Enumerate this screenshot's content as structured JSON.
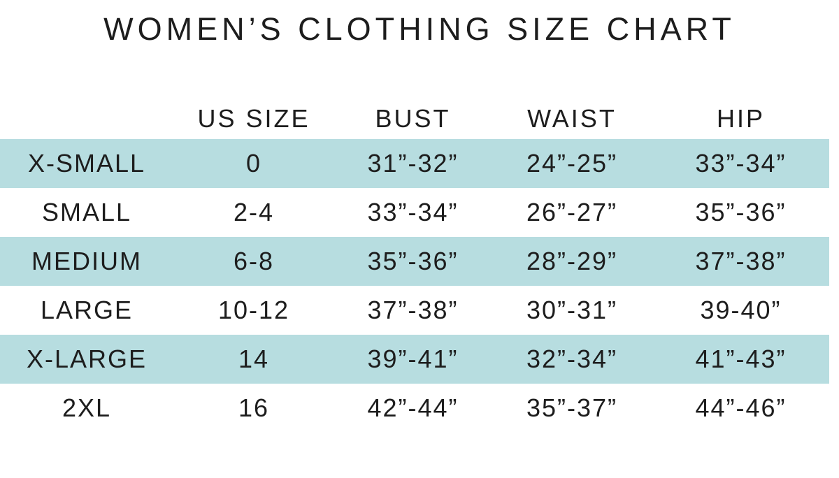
{
  "title": "WOMEN’S CLOTHING SIZE CHART",
  "chart_data": {
    "type": "table",
    "title": "WOMEN’S CLOTHING SIZE CHART",
    "columns": [
      "",
      "US SIZE",
      "BUST",
      "WAIST",
      "HIP"
    ],
    "rows": [
      [
        "X-SMALL",
        "0",
        "31”-32”",
        "24”-25”",
        "33”-34”"
      ],
      [
        "SMALL",
        "2-4",
        "33”-34”",
        "26”-27”",
        "35”-36”"
      ],
      [
        "MEDIUM",
        "6-8",
        "35”-36”",
        "28”-29”",
        "37”-38”"
      ],
      [
        "LARGE",
        "10-12",
        "37”-38”",
        "30”-31”",
        "39-40”"
      ],
      [
        "X-LARGE",
        "14",
        "39”-41”",
        "32”-34”",
        "41”-43”"
      ],
      [
        "2XL",
        "16",
        "42”-44”",
        "35”-37”",
        "44”-46”"
      ]
    ],
    "highlighted_row_indices": [
      0,
      2,
      4
    ],
    "layout": {
      "grid": "off",
      "header_position": "top",
      "stripe_style": "alternating-full-width-bands"
    }
  },
  "colors": {
    "stripe": "#b7dde0",
    "text": "#1d1d1d",
    "background": "#ffffff"
  }
}
